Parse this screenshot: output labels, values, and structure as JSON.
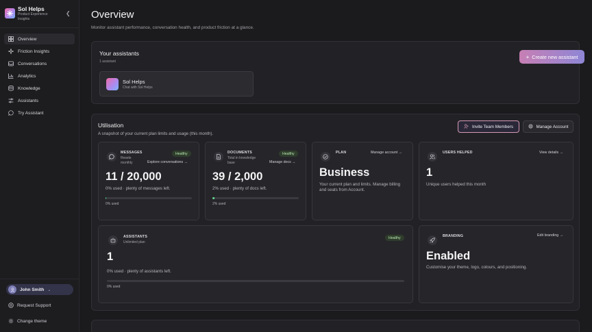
{
  "sidebar": {
    "brand_name": "Sol Helps",
    "brand_sub": "Product Experience Insights",
    "collapse_icon": "chevron-left-icon",
    "items": [
      {
        "label": "Overview",
        "icon": "grid-icon",
        "active": true
      },
      {
        "label": "Friction Insights",
        "icon": "sparkle-icon",
        "active": false
      },
      {
        "label": "Conversations",
        "icon": "inbox-icon",
        "active": false
      },
      {
        "label": "Analytics",
        "icon": "bar-chart-icon",
        "active": false
      },
      {
        "label": "Knowledge",
        "icon": "database-icon",
        "active": false
      },
      {
        "label": "Assistants",
        "icon": "sliders-icon",
        "active": false
      },
      {
        "label": "Try Assistant",
        "icon": "chat-bubble-icon",
        "active": false
      }
    ],
    "user_name": "John Smith",
    "request_support": "Request Support",
    "change_theme": "Change theme"
  },
  "header": {
    "title": "Overview",
    "subtitle": "Monitor assistant performance, conversation health, and product friction at a glance."
  },
  "assistants_panel": {
    "title": "Your assistants",
    "count_text": "1 assistant",
    "create_button": "Create new assistant",
    "assistant": {
      "name": "Sol Helps",
      "description": "Chat with Sol Helps"
    }
  },
  "utilisation": {
    "title": "Utilisation",
    "subtitle": "A snapshot of your current plan limits and usage (this month).",
    "invite_button": "Invite Team Members",
    "manage_button": "Manage Account",
    "messages": {
      "label": "MESSAGES",
      "sub": "Resets monthly",
      "badge": "Healthy",
      "link": "Explore conversations",
      "value": "11 / 20,000",
      "desc": "0% used · plenty of messages left.",
      "pct_label": "0% used",
      "fraction": 0.001
    },
    "documents": {
      "label": "DOCUMENTS",
      "sub": "Total in knowledge base",
      "badge": "Healthy",
      "link": "Manage docs",
      "value": "39 / 2,000",
      "desc": "2% used · plenty of docs left.",
      "pct_label": "2% used",
      "fraction": 0.02
    },
    "plan": {
      "label": "PLAN",
      "link": "Manage account",
      "value": "Business",
      "desc": "Your current plan and limits. Manage billing and seats from Account."
    },
    "users": {
      "label": "USERS HELPED",
      "link": "View details",
      "value": "1",
      "desc": "Unique users helped this month"
    },
    "assistants": {
      "label": "ASSISTANTS",
      "sub": "Unlimited plan",
      "badge": "Healthy",
      "value": "1",
      "desc": "0% used · plenty of assistants left.",
      "pct_label": "0% used",
      "fraction": 0
    },
    "branding": {
      "label": "BRANDING",
      "link": "Edit branding",
      "value": "Enabled",
      "desc": "Customise your theme, logo, colours, and positioning."
    }
  },
  "colors": {
    "accent_green": "#5dd08a",
    "badge_bg": "#2f3d2c",
    "create_gradient": [
      "#c77fb4",
      "#8e86d6"
    ]
  }
}
